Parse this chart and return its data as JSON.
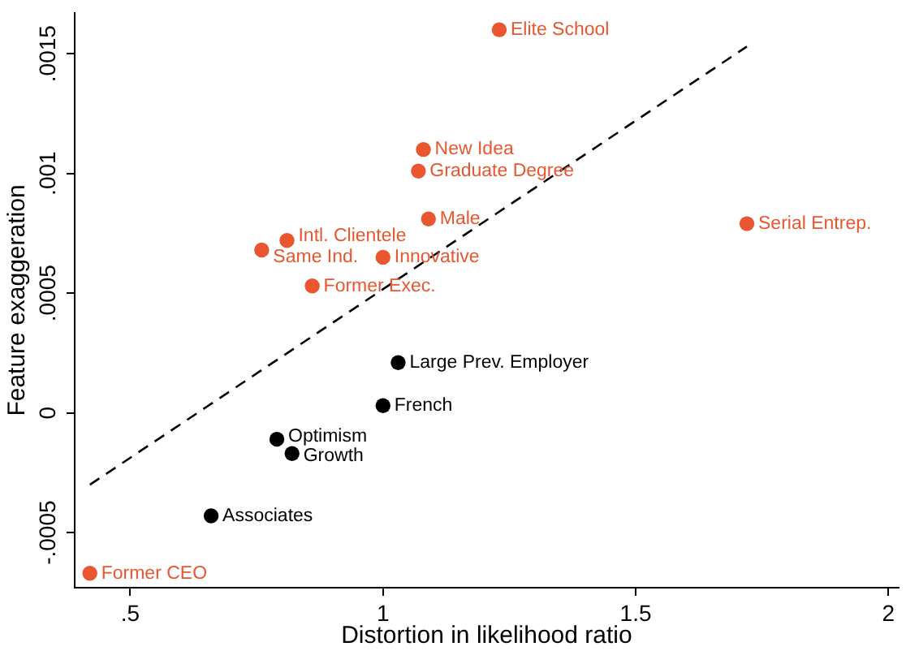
{
  "chart_data": {
    "type": "scatter",
    "xlabel": "Distortion in likelihood ratio",
    "ylabel": "Feature exaggeration",
    "xlim": [
      0.39,
      2.02
    ],
    "xticks": [
      {
        "value": 0.5,
        "label": ".5"
      },
      1,
      1.5,
      2
    ],
    "ylim": [
      -0.00073,
      0.00167
    ],
    "yticks": [
      {
        "value": -0.0005,
        "label": "-.0005"
      },
      0,
      {
        "value": 0.0005,
        "label": ".0005"
      },
      {
        "value": 0.001,
        "label": ".001"
      },
      {
        "value": 0.0015,
        "label": ".0015"
      }
    ],
    "marker": "circle",
    "series": [
      {
        "color": "#e9562f",
        "x": [
          1.23,
          1.08,
          1.07,
          1.09,
          0.81,
          0.76,
          1.0,
          0.86,
          1.72,
          0.42
        ],
        "values": [
          0.0016,
          0.0011,
          0.00101,
          0.00081,
          0.00072,
          0.00068,
          0.00065,
          0.00053,
          0.00079,
          -0.00067
        ],
        "value_labels": [
          "Elite School",
          "New Idea",
          "Graduate Degree",
          "Male",
          "Intl. Clientele",
          "Same Ind.",
          "Innovative",
          "Former Exec.",
          "Serial Entrep.",
          "Former CEO"
        ]
      },
      {
        "color": "#000000",
        "x": [
          1.03,
          1.0,
          0.79,
          0.82,
          0.66
        ],
        "values": [
          0.00021,
          3e-05,
          -0.00011,
          -0.00017,
          -0.00043
        ],
        "value_labels": [
          "Large Prev. Employer",
          "French",
          "Optimism",
          "Growth",
          "Associates"
        ]
      },
      {
        "type": "line",
        "color": "#000000",
        "x": [
          0.42,
          1.72
        ],
        "values": [
          -0.0003,
          0.00153
        ],
        "line_style": "dashed",
        "marker": "none"
      }
    ]
  }
}
